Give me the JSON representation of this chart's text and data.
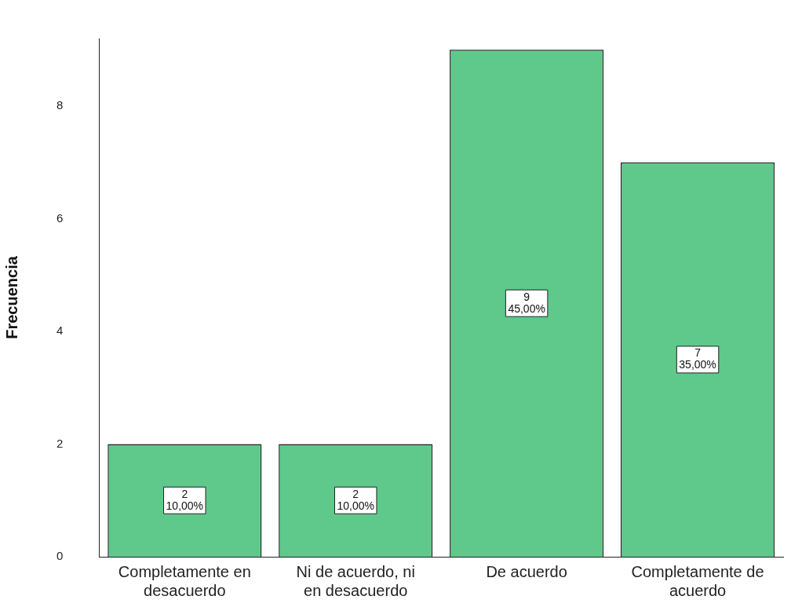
{
  "chart_data": {
    "type": "bar",
    "ylabel": "Frecuencia",
    "categories": [
      "Completamente en desacuerdo",
      "Ni de acuerdo, ni en desacuerdo",
      "De acuerdo",
      "Completamente de acuerdo"
    ],
    "values": [
      2,
      2,
      9,
      7
    ],
    "color": "#5ec98b",
    "value_labels": [
      "2\n10,00%",
      "2\n10,00%",
      "9\n45,00%",
      "7\n35,00%"
    ],
    "ylim": [
      0,
      9.2
    ],
    "yticks": [
      0,
      2,
      4,
      6,
      8
    ],
    "grid": false,
    "legend": false
  }
}
